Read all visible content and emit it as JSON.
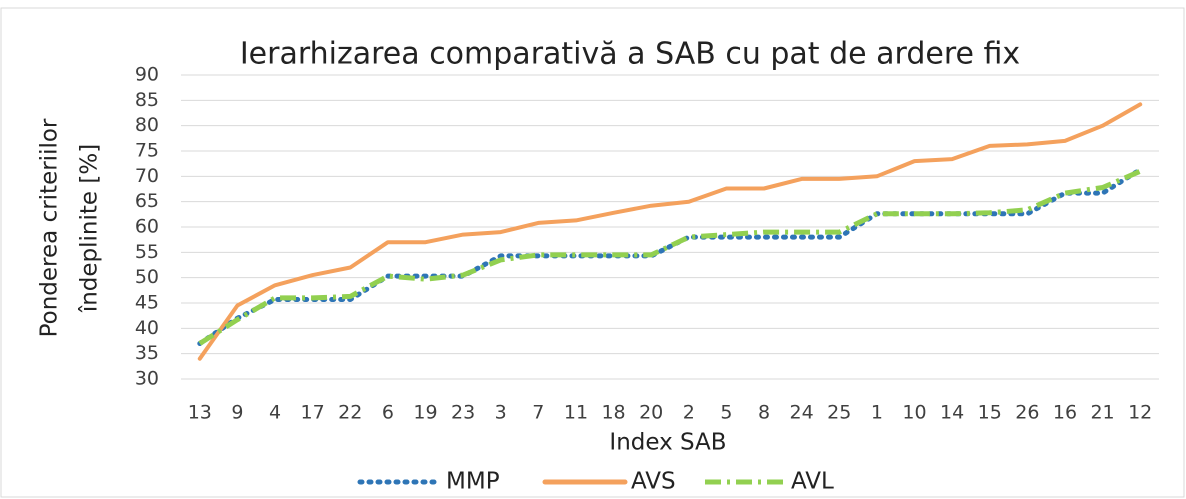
{
  "chart_data": {
    "type": "line",
    "title": "Ierarhizarea comparativă a SAB cu pat de ardere fix",
    "xlabel": "Index SAB",
    "ylabel": [
      "Ponderea criteriilor",
      "îndeplinite [%]"
    ],
    "categories": [
      "13",
      "9",
      "4",
      "17",
      "22",
      "6",
      "19",
      "23",
      "3",
      "7",
      "11",
      "18",
      "20",
      "2",
      "5",
      "8",
      "24",
      "25",
      "1",
      "10",
      "14",
      "15",
      "26",
      "16",
      "21",
      "12"
    ],
    "series": [
      {
        "name": "MMP",
        "color": "#2e75b6",
        "dash": "dot",
        "values": [
          37,
          42,
          45.7,
          45.7,
          45.7,
          50.3,
          50.3,
          50.3,
          54.3,
          54.3,
          54.3,
          54.3,
          54.3,
          58,
          58,
          58,
          58,
          58,
          62.6,
          62.6,
          62.6,
          62.6,
          62.6,
          66.7,
          66.7,
          71.3
        ]
      },
      {
        "name": "AVS",
        "color": "#f4a15d",
        "dash": "solid",
        "values": [
          34,
          44.5,
          48.5,
          50.5,
          52,
          57,
          57,
          58.5,
          59,
          60.8,
          61.3,
          62.8,
          64.2,
          65,
          67.6,
          67.6,
          69.5,
          69.5,
          70,
          73,
          73.4,
          76,
          76.3,
          77,
          80,
          84.2
        ]
      },
      {
        "name": "AVL",
        "color": "#92d050",
        "dash": "dashdot",
        "values": [
          37,
          41.7,
          46,
          46,
          46.3,
          50.3,
          49.7,
          50.5,
          53.5,
          54.5,
          54.5,
          54.5,
          54.5,
          58,
          58.5,
          59,
          59,
          59,
          62.6,
          62.6,
          62.6,
          62.8,
          63.4,
          66.7,
          67.8,
          71
        ]
      }
    ],
    "ylim": [
      30,
      90
    ],
    "yticks": [
      30,
      35,
      40,
      45,
      50,
      55,
      60,
      65,
      70,
      75,
      80,
      85,
      90
    ],
    "grid": true,
    "legend": "bottom"
  }
}
